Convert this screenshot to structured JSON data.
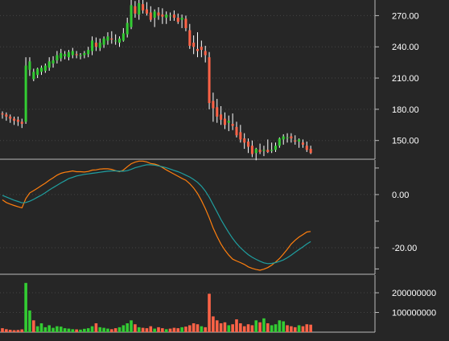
{
  "theme": {
    "background": "#262626",
    "up": "#33cc33",
    "down": "#ff6347",
    "wick": "#ffffff",
    "macd": "#ff7f0e",
    "signal": "#1f9fa0",
    "grid": "#444444",
    "text": "#ffffff"
  },
  "chart_data": [
    {
      "type": "candlestick",
      "panel": "price",
      "y_tick_labels": [
        "150.00",
        "180.00",
        "210.00",
        "240.00",
        "270.00"
      ],
      "ylim": [
        132,
        285
      ],
      "grid": true,
      "axis_side": "right",
      "ohlc": [
        [
          176,
          178,
          171,
          175
        ],
        [
          175,
          177,
          169,
          173
        ],
        [
          173,
          175,
          167,
          171
        ],
        [
          171,
          173,
          165,
          169
        ],
        [
          170,
          173,
          164,
          168
        ],
        [
          168,
          171,
          162,
          166
        ],
        [
          168,
          230,
          166,
          222
        ],
        [
          218,
          230,
          212,
          226
        ],
        [
          209,
          219,
          207,
          216
        ],
        [
          213,
          220,
          210,
          219
        ],
        [
          216,
          222,
          213,
          220
        ],
        [
          217,
          224,
          215,
          222
        ],
        [
          220,
          230,
          217,
          226
        ],
        [
          224,
          231,
          220,
          227
        ],
        [
          227,
          236,
          224,
          232
        ],
        [
          229,
          238,
          226,
          234
        ],
        [
          231,
          236,
          228,
          233
        ],
        [
          230,
          237,
          227,
          235
        ],
        [
          232,
          239,
          229,
          236
        ],
        [
          233,
          236,
          229,
          232
        ],
        [
          231,
          234,
          228,
          232
        ],
        [
          232,
          236,
          229,
          234
        ],
        [
          233,
          240,
          230,
          237
        ],
        [
          236,
          250,
          232,
          246
        ],
        [
          244,
          249,
          236,
          240
        ],
        [
          239,
          248,
          236,
          244
        ],
        [
          242,
          250,
          239,
          248
        ],
        [
          246,
          254,
          242,
          250
        ],
        [
          248,
          255,
          243,
          247
        ],
        [
          246,
          252,
          242,
          246
        ],
        [
          244,
          250,
          240,
          248
        ],
        [
          246,
          258,
          245,
          253
        ],
        [
          252,
          268,
          249,
          263
        ],
        [
          259,
          285,
          257,
          280
        ],
        [
          279,
          284,
          268,
          272
        ],
        [
          271,
          286,
          266,
          282
        ],
        [
          281,
          286,
          272,
          275
        ],
        [
          276,
          283,
          270,
          272
        ],
        [
          273,
          279,
          264,
          266
        ],
        [
          268,
          276,
          259,
          274
        ],
        [
          273,
          278,
          266,
          270
        ],
        [
          271,
          277,
          262,
          269
        ],
        [
          268,
          274,
          262,
          271
        ],
        [
          270,
          273,
          265,
          270
        ],
        [
          271,
          275,
          265,
          268
        ],
        [
          268,
          272,
          262,
          264
        ],
        [
          266,
          271,
          258,
          268
        ],
        [
          267,
          270,
          255,
          258
        ],
        [
          256,
          262,
          238,
          241
        ],
        [
          244,
          251,
          233,
          240
        ],
        [
          238,
          254,
          230,
          236
        ],
        [
          240,
          246,
          230,
          237
        ],
        [
          236,
          241,
          225,
          232
        ],
        [
          230,
          235,
          180,
          186
        ],
        [
          188,
          196,
          168,
          181
        ],
        [
          182,
          190,
          167,
          173
        ],
        [
          175,
          183,
          165,
          170
        ],
        [
          171,
          177,
          161,
          165
        ],
        [
          167,
          174,
          159,
          169
        ],
        [
          166,
          176,
          160,
          164
        ],
        [
          163,
          168,
          153,
          155
        ],
        [
          158,
          165,
          148,
          151
        ],
        [
          152,
          157,
          142,
          148
        ],
        [
          149,
          152,
          138,
          144
        ],
        [
          145,
          150,
          134,
          137
        ],
        [
          138,
          143,
          131,
          142
        ],
        [
          141,
          147,
          137,
          139
        ],
        [
          140,
          145,
          135,
          141
        ],
        [
          141,
          151,
          138,
          139
        ],
        [
          140,
          148,
          138,
          141
        ],
        [
          141,
          148,
          139,
          145
        ],
        [
          145,
          153,
          143,
          152
        ],
        [
          151,
          156,
          146,
          154
        ],
        [
          153,
          157,
          148,
          153
        ],
        [
          154,
          157,
          148,
          152
        ],
        [
          150,
          155,
          146,
          149
        ],
        [
          149,
          152,
          143,
          151
        ],
        [
          148,
          151,
          143,
          146
        ],
        [
          145,
          149,
          139,
          141
        ],
        [
          142,
          145,
          137,
          138
        ]
      ]
    },
    {
      "type": "line",
      "panel": "macd",
      "y_tick_labels": [
        "0.00",
        "-20.00"
      ],
      "ylim": [
        -30,
        13
      ],
      "grid": true,
      "series": [
        {
          "color": "#ff7f0e",
          "values": [
            -2.0,
            -3.0,
            -3.6,
            -4.1,
            -4.6,
            -5.0,
            -1.5,
            0.6,
            1.5,
            2.4,
            3.4,
            4.3,
            5.4,
            6.3,
            7.3,
            8.0,
            8.4,
            8.6,
            8.9,
            8.6,
            8.6,
            8.5,
            8.7,
            9.2,
            9.3,
            9.6,
            9.7,
            9.7,
            9.5,
            9.0,
            8.6,
            9.2,
            10.5,
            11.6,
            12.2,
            12.6,
            12.6,
            12.3,
            11.7,
            11.5,
            11.0,
            10.2,
            9.3,
            8.5,
            7.7,
            6.9,
            6.1,
            5.4,
            4.1,
            2.5,
            0.4,
            -2.2,
            -5.3,
            -8.7,
            -12.6,
            -15.8,
            -18.6,
            -20.9,
            -22.8,
            -24.3,
            -25.0,
            -25.6,
            -26.3,
            -27.2,
            -27.8,
            -28.2,
            -28.5,
            -28.1,
            -27.5,
            -26.6,
            -25.4,
            -24.1,
            -22.4,
            -20.6,
            -18.6,
            -17.2,
            -16.0,
            -15.1,
            -14.1,
            -13.9
          ]
        },
        {
          "color": "#1f9fa0",
          "values": [
            -0.3,
            -0.9,
            -1.5,
            -2.1,
            -2.6,
            -3.1,
            -3.0,
            -2.5,
            -1.8,
            -1.0,
            -0.2,
            0.7,
            1.7,
            2.6,
            3.5,
            4.4,
            5.2,
            6.0,
            6.5,
            7.0,
            7.3,
            7.6,
            7.8,
            8.0,
            8.2,
            8.4,
            8.6,
            8.8,
            8.9,
            8.9,
            8.8,
            8.8,
            9.0,
            9.5,
            10.1,
            10.5,
            10.9,
            11.2,
            11.2,
            11.1,
            10.8,
            10.5,
            10.1,
            9.6,
            9.1,
            8.6,
            8.0,
            7.3,
            6.6,
            5.7,
            4.6,
            3.2,
            1.3,
            -1.0,
            -3.8,
            -6.6,
            -9.4,
            -11.9,
            -14.3,
            -16.5,
            -18.4,
            -20.0,
            -21.4,
            -22.6,
            -23.6,
            -24.4,
            -25.1,
            -25.7,
            -26.0,
            -25.9,
            -25.6,
            -25.2,
            -24.6,
            -23.8,
            -22.8,
            -21.7,
            -20.7,
            -19.7,
            -18.6,
            -17.7
          ]
        }
      ]
    },
    {
      "type": "bar",
      "panel": "volume",
      "y_tick_labels": [
        "100000000",
        "200000000"
      ],
      "ylim": [
        0,
        290000000
      ],
      "grid": true,
      "values": [
        20000000,
        15000000,
        12000000,
        10000000,
        11000000,
        14000000,
        250000000,
        110000000,
        60000000,
        30000000,
        45000000,
        25000000,
        35000000,
        22000000,
        30000000,
        28000000,
        20000000,
        18000000,
        15000000,
        14000000,
        13000000,
        17000000,
        20000000,
        30000000,
        45000000,
        25000000,
        22000000,
        18000000,
        15000000,
        20000000,
        25000000,
        35000000,
        45000000,
        60000000,
        40000000,
        25000000,
        22000000,
        20000000,
        30000000,
        18000000,
        25000000,
        20000000,
        15000000,
        18000000,
        22000000,
        20000000,
        25000000,
        28000000,
        35000000,
        45000000,
        40000000,
        30000000,
        25000000,
        195000000,
        80000000,
        60000000,
        45000000,
        50000000,
        35000000,
        40000000,
        65000000,
        45000000,
        30000000,
        40000000,
        35000000,
        60000000,
        50000000,
        70000000,
        45000000,
        35000000,
        40000000,
        60000000,
        55000000,
        35000000,
        30000000,
        25000000,
        35000000,
        30000000,
        40000000,
        38000000
      ],
      "up_down": [
        "d",
        "d",
        "d",
        "d",
        "d",
        "d",
        "u",
        "u",
        "d",
        "u",
        "u",
        "u",
        "u",
        "u",
        "u",
        "u",
        "u",
        "u",
        "u",
        "d",
        "u",
        "u",
        "u",
        "u",
        "d",
        "u",
        "u",
        "u",
        "d",
        "d",
        "u",
        "u",
        "u",
        "u",
        "d",
        "u",
        "d",
        "d",
        "d",
        "u",
        "d",
        "d",
        "u",
        "d",
        "d",
        "d",
        "u",
        "d",
        "d",
        "d",
        "d",
        "u",
        "d",
        "d",
        "d",
        "d",
        "d",
        "d",
        "u",
        "d",
        "d",
        "d",
        "d",
        "d",
        "d",
        "u",
        "d",
        "u",
        "d",
        "u",
        "u",
        "u",
        "u",
        "d",
        "d",
        "d",
        "u",
        "d",
        "d",
        "d"
      ]
    }
  ]
}
